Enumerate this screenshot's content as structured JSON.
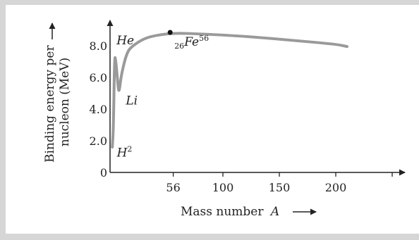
{
  "chart_data": {
    "type": "line",
    "ylabel_line1": "Binding energy per",
    "ylabel_line2": "nucleon (MeV)",
    "xlabel": "Mass number",
    "xlabel_var": "A",
    "x_ticks": [
      {
        "label": "56",
        "value": 56
      },
      {
        "label": "100",
        "value": 100
      },
      {
        "label": "150",
        "value": 150
      },
      {
        "label": "200",
        "value": 200
      },
      {
        "label": "",
        "value": 250
      }
    ],
    "y_ticks": [
      {
        "label": "0",
        "value": 0
      },
      {
        "label": "2.0",
        "value": 2
      },
      {
        "label": "4.0",
        "value": 4
      },
      {
        "label": "6.0",
        "value": 6
      },
      {
        "label": "8.0",
        "value": 8
      }
    ],
    "xlim": [
      0,
      280
    ],
    "ylim": [
      0,
      10
    ],
    "series": [
      {
        "points": [
          [
            2,
            1.6
          ],
          [
            3,
            2.8
          ],
          [
            4,
            7.3
          ],
          [
            5,
            7.2
          ],
          [
            7,
            5.5
          ],
          [
            8,
            5.0
          ],
          [
            10,
            6.2
          ],
          [
            15,
            7.6
          ],
          [
            20,
            8.0
          ],
          [
            30,
            8.45
          ],
          [
            40,
            8.65
          ],
          [
            56,
            8.8
          ],
          [
            80,
            8.75
          ],
          [
            120,
            8.6
          ],
          [
            160,
            8.35
          ],
          [
            200,
            8.1
          ],
          [
            210,
            7.95
          ]
        ]
      }
    ],
    "marker_point": {
      "x": 62,
      "y": 8.8
    },
    "labels": [
      {
        "base": "He",
        "x": 7,
        "y": 8.1,
        "prefix": "",
        "sup": ""
      },
      {
        "base": "Li",
        "x": 14,
        "y": 4.3,
        "prefix": "",
        "sup": ""
      },
      {
        "base": "H",
        "x": 6,
        "y": 1.0,
        "prefix": "",
        "sup": "2"
      },
      {
        "base": "Fe",
        "x": 57,
        "y": 8.0,
        "prefix": "26",
        "sup": "56"
      }
    ]
  }
}
